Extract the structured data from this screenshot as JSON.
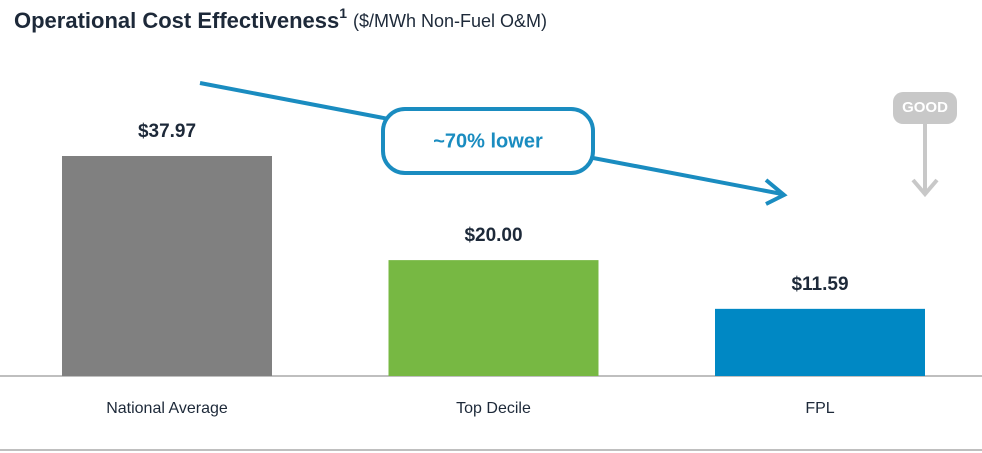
{
  "chart_data": {
    "type": "bar",
    "title": "Operational Cost Effectiveness",
    "title_superscript": "1",
    "subtitle": "($/MWh Non-Fuel O&M)",
    "categories": [
      "National Average",
      "Top Decile",
      "FPL"
    ],
    "values": [
      37.97,
      20.0,
      11.59
    ],
    "value_labels": [
      "$37.97",
      "$20.00",
      "$11.59"
    ],
    "colors": [
      "#808080",
      "#77b843",
      "#0088c4"
    ],
    "annotations": [
      "~70% lower",
      "GOOD"
    ]
  }
}
